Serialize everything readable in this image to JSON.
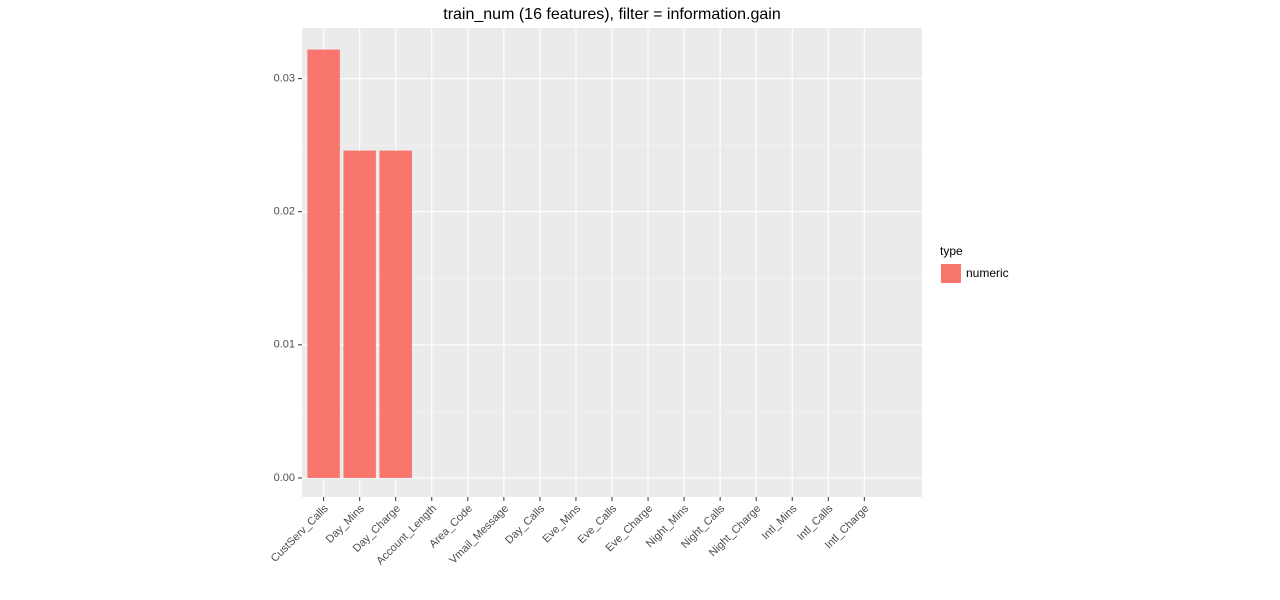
{
  "chart_data": {
    "type": "bar",
    "title": "train_num (16 features), filter = information.gain",
    "categories": [
      "CustServ_Calls",
      "Day_Mins",
      "Day_Charge",
      "Account_Length",
      "Area_Code",
      "Vmail_Message",
      "Day_Calls",
      "Eve_Mins",
      "Eve_Calls",
      "Eve_Charge",
      "Night_Mins",
      "Night_Calls",
      "Night_Charge",
      "Intl_Mins",
      "Intl_Calls",
      "Intl_Charge"
    ],
    "series": [
      {
        "name": "numeric",
        "color": "#f8766d",
        "values": [
          0.03218,
          0.02459,
          0.02459,
          0,
          0,
          0,
          0,
          0,
          0,
          0,
          0,
          0,
          0,
          0,
          0,
          0
        ]
      }
    ],
    "legend_title": "type",
    "ylim": [
      -0.00143,
      0.0338
    ],
    "yticks": [
      {
        "value": 0,
        "label": "0.00"
      },
      0.01,
      0.02,
      0.03
    ],
    "minor_yticks": [
      0.005,
      0.015,
      0.025
    ],
    "grid": true
  }
}
